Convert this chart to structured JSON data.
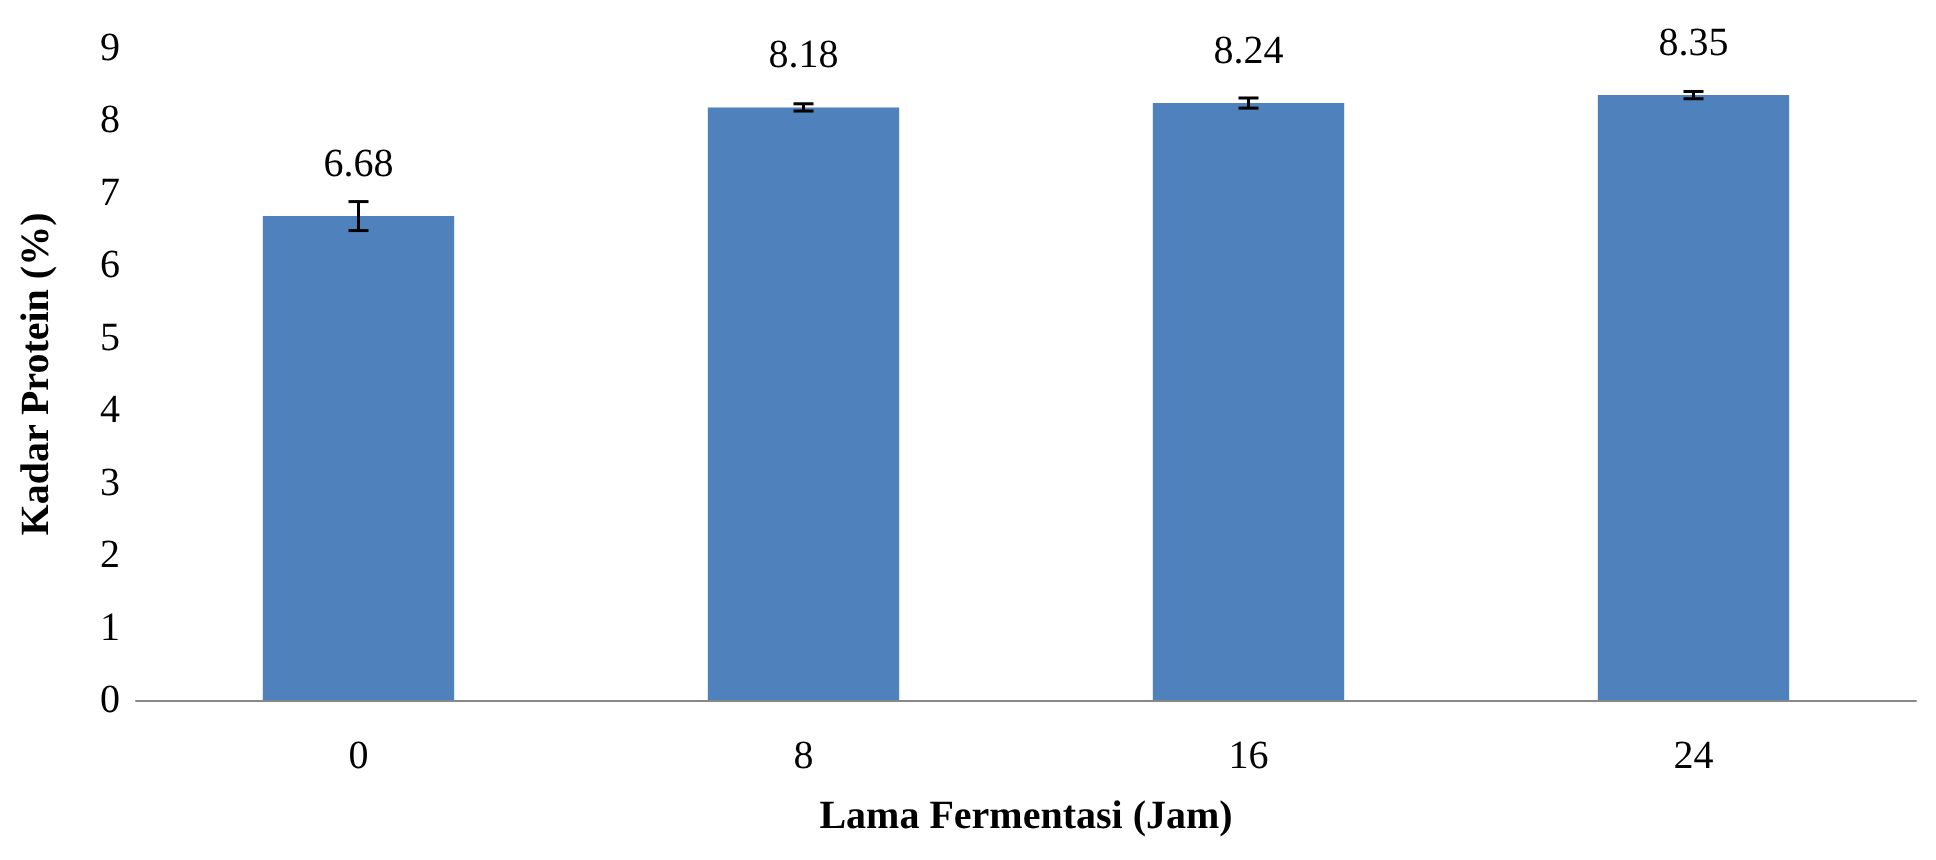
{
  "chart_data": {
    "type": "bar",
    "xlabel": "Lama Fermentasi (Jam)",
    "ylabel": "Kadar Protein (%)",
    "categories": [
      "0",
      "8",
      "16",
      "24"
    ],
    "values": [
      6.68,
      8.18,
      8.24,
      8.35
    ],
    "errors": [
      0.2,
      0.05,
      0.07,
      0.05
    ],
    "color": "#4f81bd",
    "ylim": [
      0,
      9
    ],
    "yticks": [
      0,
      1,
      2,
      3,
      4,
      5,
      6,
      7,
      8,
      9
    ],
    "data_labels": true,
    "grid": false
  }
}
